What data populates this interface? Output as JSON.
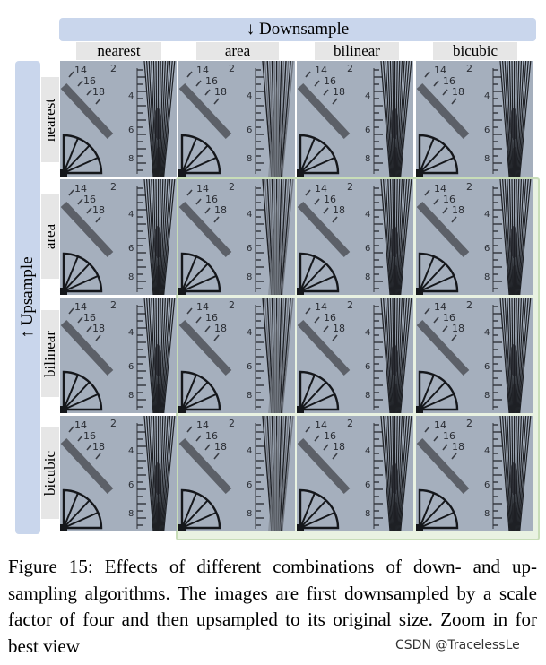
{
  "figure": {
    "top_axis_label": "↓ Downsample",
    "side_axis_label": "↑ Upsample",
    "columns": [
      "nearest",
      "area",
      "bilinear",
      "bicubic"
    ],
    "rows": [
      "nearest",
      "area",
      "bilinear",
      "bicubic"
    ],
    "cell_numbers": {
      "n14": "14",
      "n16": "16",
      "n18": "18",
      "n2": "2",
      "n4": "4",
      "n6": "6",
      "n8": "8"
    },
    "colors": {
      "banner": "#c9d6ec",
      "label_bg": "#e6e6e6",
      "highlight_fill": "#e9f2e2",
      "highlight_border": "#c8ddb8",
      "chart_bg": "#a5afbd"
    }
  },
  "caption": {
    "text": "Figure 15: Effects of different combinations of down- and up-sampling algorithms. The images are first downsampled by a scale factor of four and then upsampled to its original size. Zoom in for best view"
  },
  "watermark": "CSDN @TracelessLe"
}
